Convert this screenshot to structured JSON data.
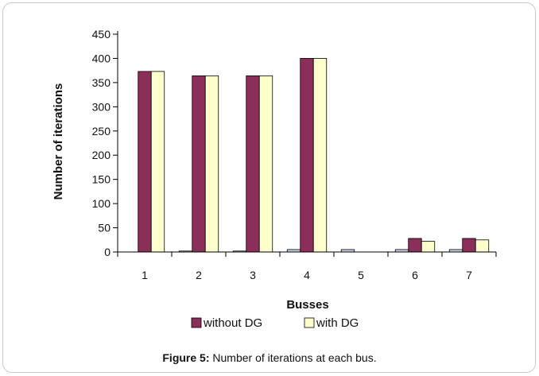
{
  "chart_data": {
    "type": "bar",
    "categories": [
      "1",
      "2",
      "3",
      "4",
      "5",
      "6",
      "7"
    ],
    "series": [
      {
        "name": "",
        "values": [
          0,
          2,
          2,
          5,
          5,
          5,
          5
        ],
        "color": "#c6d0e6"
      },
      {
        "name": "without DG",
        "values": [
          373,
          364,
          364,
          400,
          0,
          28,
          28
        ],
        "color": "#8b2f5a"
      },
      {
        "name": "with DG",
        "values": [
          373,
          364,
          364,
          400,
          0,
          22,
          25
        ],
        "color": "#ffffcc"
      }
    ],
    "title": "",
    "xlabel": "Busses",
    "ylabel": "Number of iterations",
    "ylim": [
      0,
      450
    ],
    "yticks": [
      0,
      50,
      100,
      150,
      200,
      250,
      300,
      350,
      400,
      450
    ],
    "grid": false,
    "legend_position": "bottom"
  },
  "caption": {
    "label": "Figure 5:",
    "text": " Number of iterations at each bus."
  }
}
